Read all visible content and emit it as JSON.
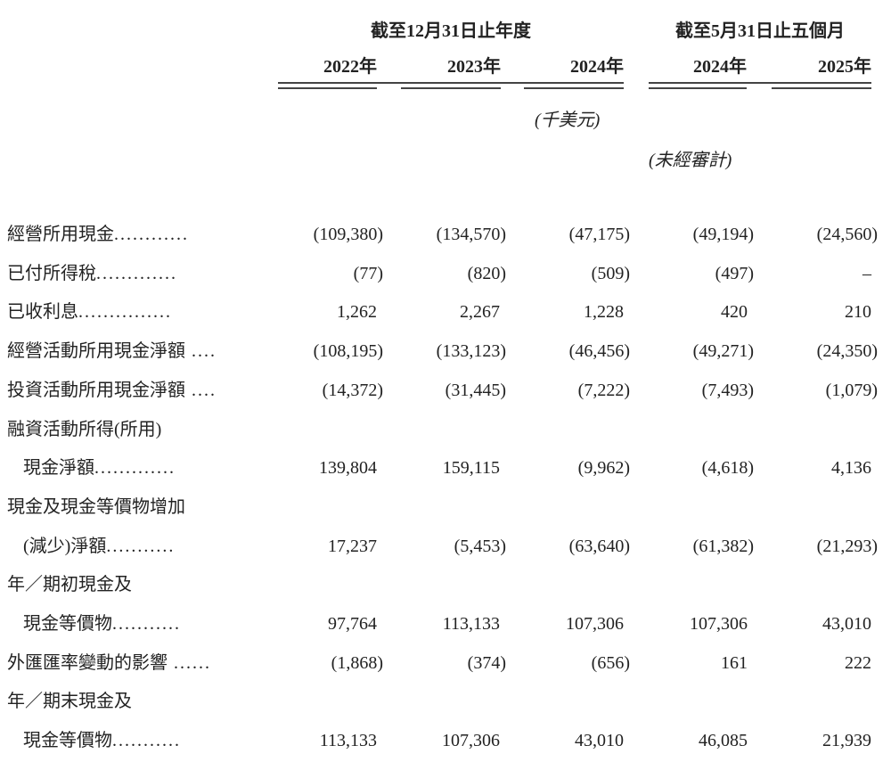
{
  "header": {
    "group_fy": "截至12月31日止年度",
    "group_5m": "截至5月31日止五個月",
    "years": [
      "2022年",
      "2023年",
      "2024年",
      "2024年",
      "2025年"
    ],
    "unit_note": "(千美元)",
    "unaudited_note": "(未經審計)"
  },
  "rows": [
    {
      "label": "經營所用現金",
      "dots": "............",
      "indent": false,
      "values": [
        "(109,380)",
        "(134,570)",
        "(47,175)",
        "(49,194)",
        "(24,560)"
      ]
    },
    {
      "label": "已付所得稅",
      "dots": ".............",
      "indent": false,
      "values": [
        "(77)",
        "(820)",
        "(509)",
        "(497)",
        "–"
      ]
    },
    {
      "label": "已收利息",
      "dots": "...............",
      "indent": false,
      "values": [
        "1,262",
        "2,267",
        "1,228",
        "420",
        "210"
      ]
    },
    {
      "label": "經營活動所用現金淨額",
      "dots": " ....",
      "indent": false,
      "values": [
        "(108,195)",
        "(133,123)",
        "(46,456)",
        "(49,271)",
        "(24,350)"
      ]
    },
    {
      "label": "投資活動所用現金淨額",
      "dots": " ....",
      "indent": false,
      "values": [
        "(14,372)",
        "(31,445)",
        "(7,222)",
        "(7,493)",
        "(1,079)"
      ]
    },
    {
      "label": "融資活動所得(所用)",
      "dots": "",
      "indent": false,
      "values": []
    },
    {
      "label": "現金淨額",
      "dots": ".............",
      "indent": true,
      "values": [
        "139,804",
        "159,115",
        "(9,962)",
        "(4,618)",
        "4,136"
      ]
    },
    {
      "label": "現金及現金等價物增加",
      "dots": "",
      "indent": false,
      "values": []
    },
    {
      "label": "(減少)淨額",
      "dots": "...........",
      "indent": true,
      "values": [
        "17,237",
        "(5,453)",
        "(63,640)",
        "(61,382)",
        "(21,293)"
      ]
    },
    {
      "label": "年／期初現金及",
      "dots": "",
      "indent": false,
      "values": []
    },
    {
      "label": "現金等價物",
      "dots": "...........",
      "indent": true,
      "values": [
        "97,764",
        "113,133",
        "107,306",
        "107,306",
        "43,010"
      ]
    },
    {
      "label": "外匯匯率變動的影響",
      "dots": " ......",
      "indent": false,
      "values": [
        "(1,868)",
        "(374)",
        "(656)",
        "161",
        "222"
      ]
    },
    {
      "label": "年／期末現金及",
      "dots": "",
      "indent": false,
      "values": []
    },
    {
      "label": "現金等價物",
      "dots": "...........",
      "indent": true,
      "values": [
        "113,133",
        "107,306",
        "43,010",
        "46,085",
        "21,939"
      ]
    }
  ]
}
